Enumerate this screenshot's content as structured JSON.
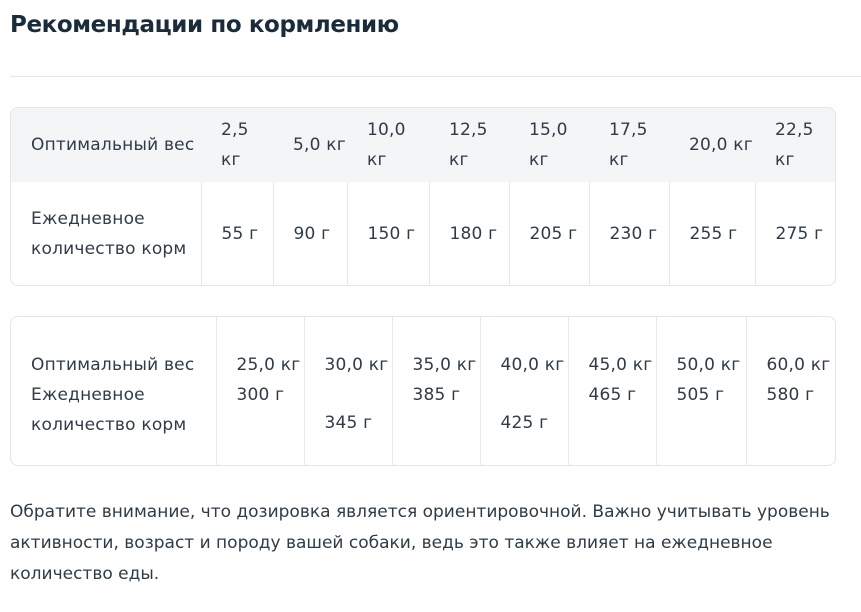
{
  "title": "Рекомендации по кормлению",
  "table1": {
    "row_weight_label": "Оптимальный вес",
    "row_amount_label": "Ежедневное количество корм",
    "weights": [
      "2,5 кг",
      "5,0 кг",
      "10,0 кг",
      "12,5 кг",
      "15,0 кг",
      "17,5 кг",
      "20,0 кг",
      "22,5 кг"
    ],
    "amounts": [
      "55 г",
      "90 г",
      "150 г",
      "180 г",
      "205 г",
      "230 г",
      "255 г",
      "275 г"
    ]
  },
  "table2": {
    "row_weight_label": "Оптимальный вес",
    "row_amount_label": "Ежедневное количество корм",
    "weights": [
      "25,0 кг",
      "30,0 кг",
      "35,0 кг",
      "40,0 кг",
      "45,0 кг",
      "50,0 кг",
      "60,0 кг"
    ],
    "amounts": [
      "300 г",
      "345 г",
      "385 г",
      "425 г",
      "465 г",
      "505 г",
      "580 г"
    ]
  },
  "note": "Обратите внимание, что дозировка является ориентировочной. Важно учитывать уровень активности, возраст и породу вашей собаки, ведь это также влияет на ежедневное количество еды."
}
